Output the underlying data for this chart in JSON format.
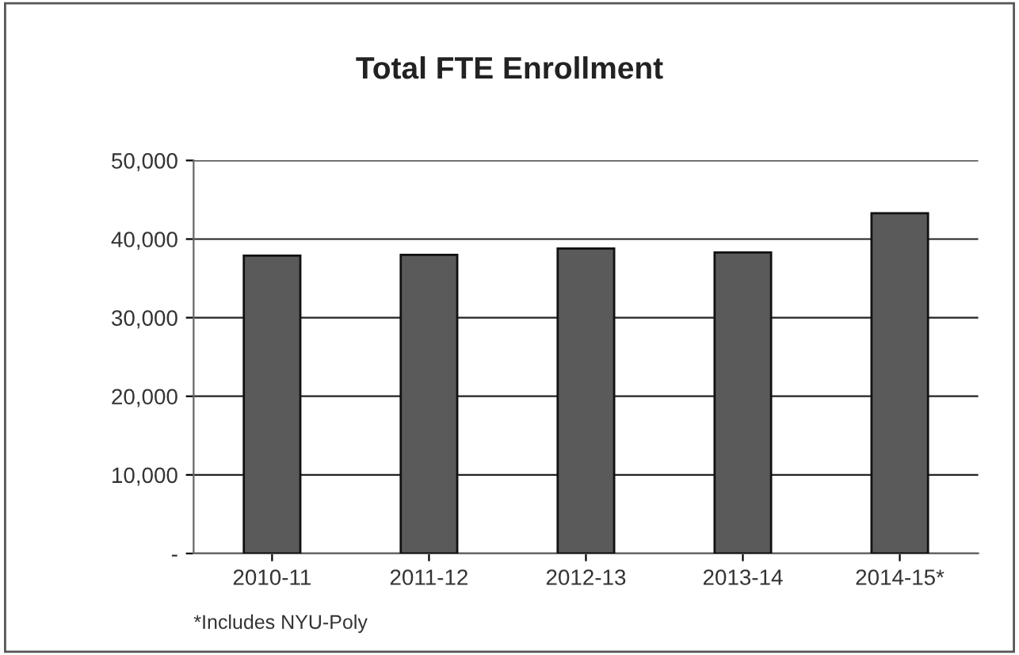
{
  "chart_data": {
    "type": "bar",
    "title": "Total FTE Enrollment",
    "categories": [
      "2010-11",
      "2011-12",
      "2012-13",
      "2013-14",
      "2014-15*"
    ],
    "values": [
      37900,
      38000,
      38800,
      38300,
      43300
    ],
    "color": "#5a5a5a",
    "ylim": [
      0,
      50000
    ],
    "yticks": [
      {
        "value": 0,
        "label": "-"
      },
      {
        "value": 10000,
        "label": "10,000"
      },
      {
        "value": 20000,
        "label": "20,000"
      },
      {
        "value": 30000,
        "label": "30,000"
      },
      {
        "value": 40000,
        "label": "40,000"
      },
      {
        "value": 50000,
        "label": "50,000"
      }
    ],
    "grid": "y",
    "annotations": [
      "*Includes NYU-Poly"
    ]
  }
}
